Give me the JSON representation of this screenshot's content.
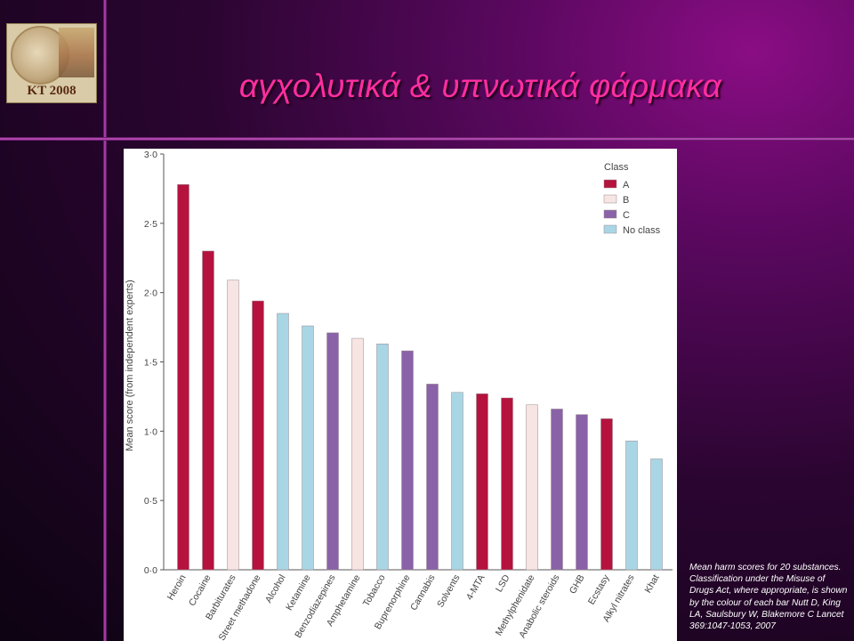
{
  "slide": {
    "title": "αγχολυτικά & υπνωτικά φάρμακα",
    "logo_text": "KT 2008",
    "caption": "Mean harm scores for 20 substances. Classification under the Misuse of Drugs Act, where appropriate, is shown by the colour of each bar Nutt D, King LA, Saulsbury W, Blakemore C Lancet 369:1047-1053, 2007"
  },
  "chart_data": {
    "type": "bar",
    "ylabel": "Mean score (from independent experts)",
    "ylim": [
      0,
      3
    ],
    "yticks": [
      "0·0",
      "0·5",
      "1·0",
      "1·5",
      "2·0",
      "2·5",
      "3·0"
    ],
    "legend": {
      "title": "Class",
      "placement": "top-right",
      "items": [
        {
          "label": "A",
          "color": "#b5123e"
        },
        {
          "label": "B",
          "color": "#f7e5e3"
        },
        {
          "label": "C",
          "color": "#8a62a8"
        },
        {
          "label": "No class",
          "color": "#a9d6e5"
        }
      ]
    },
    "categories": [
      "Heroin",
      "Cocaine",
      "Barbiturates",
      "Street methadone",
      "Alcohol",
      "Ketamine",
      "Benzodiazepines",
      "Amphetamine",
      "Tobacco",
      "Buprenorphine",
      "Cannabis",
      "Solvents",
      "4-MTA",
      "LSD",
      "Methylphenidate",
      "Anabolic steroids",
      "GHB",
      "Ecstasy",
      "Alkyl nitrates",
      "Khat"
    ],
    "values": [
      2.78,
      2.3,
      2.09,
      1.94,
      1.85,
      1.76,
      1.71,
      1.67,
      1.63,
      1.58,
      1.34,
      1.28,
      1.27,
      1.24,
      1.19,
      1.16,
      1.12,
      1.09,
      0.93,
      0.8
    ],
    "classes": [
      "A",
      "A",
      "B",
      "A",
      "No class",
      "No class",
      "C",
      "B",
      "No class",
      "C",
      "C",
      "No class",
      "A",
      "A",
      "B",
      "C",
      "C",
      "A",
      "No class",
      "No class"
    ]
  }
}
